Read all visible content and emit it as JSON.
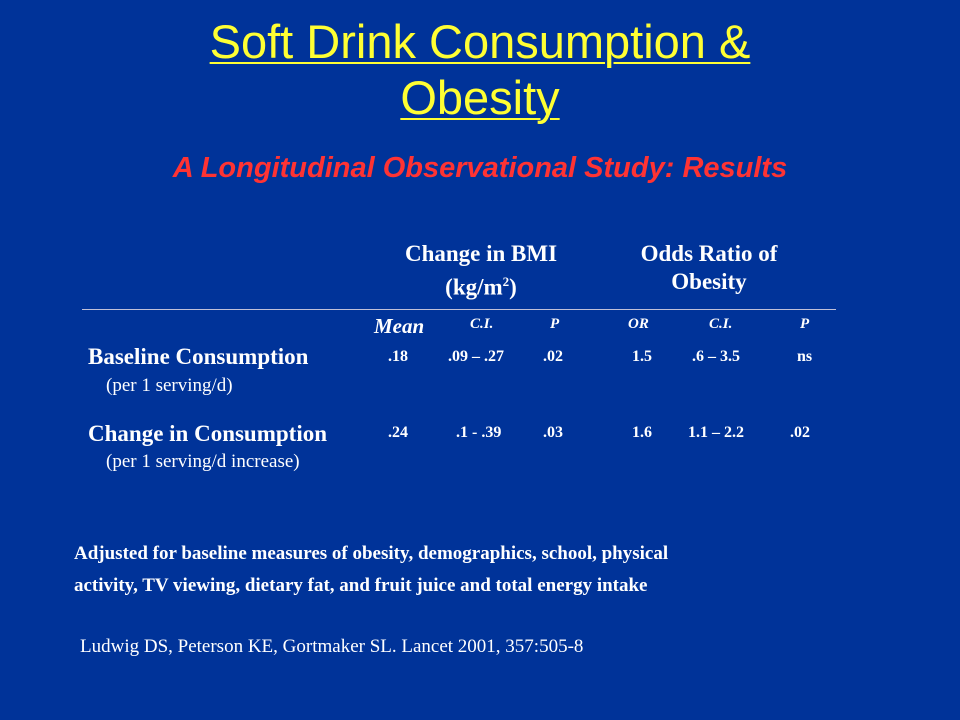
{
  "title": {
    "line1": "Soft Drink Consumption &",
    "line2": "Obesity"
  },
  "subtitle": "A Longitudinal Observational Study: Results",
  "table": {
    "group_bmi": {
      "line1": "Change in BMI",
      "line2_pre": "(kg/m",
      "line2_sup": "2",
      "line2_post": ")"
    },
    "group_or": {
      "line1": "Odds Ratio of",
      "line2": "Obesity"
    },
    "columns": [
      "Mean",
      "C.I.",
      "P",
      "OR",
      "C.I.",
      "P"
    ],
    "rows": [
      {
        "label": "Baseline Consumption",
        "sub": "(per 1 serving/d)",
        "values": [
          ".18",
          ".09 – .27",
          ".02",
          "1.5",
          ".6 – 3.5",
          "ns"
        ]
      },
      {
        "label": "Change in Consumption",
        "sub": "(per 1 serving/d increase)",
        "values": [
          ".24",
          ".1 - .39",
          ".03",
          "1.6",
          "1.1 – 2.2",
          ".02"
        ]
      }
    ]
  },
  "note": {
    "line1": "Adjusted for baseline measures of obesity, demographics, school, physical",
    "line2": "activity, TV viewing, dietary fat, and fruit juice and total energy intake"
  },
  "citation": "Ludwig DS, Peterson KE, Gortmaker SL. Lancet 2001, 357:505-8",
  "colors": {
    "background": "#003399",
    "title": "#ffff33",
    "subtitle": "#ff3333",
    "text": "#ffffff"
  }
}
